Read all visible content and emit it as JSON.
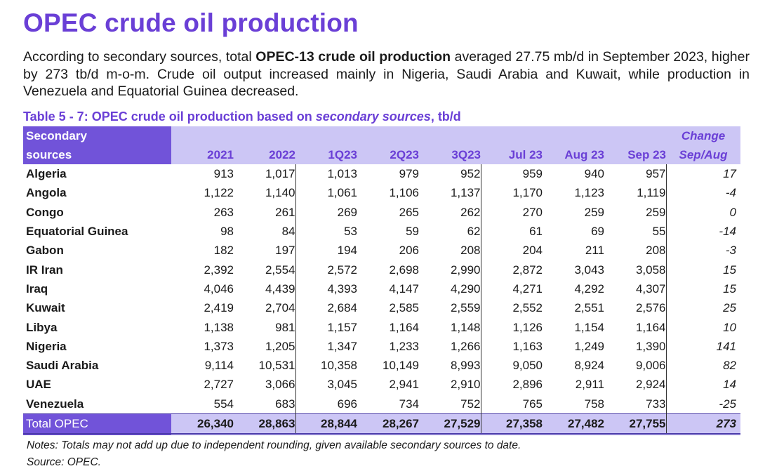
{
  "title": "OPEC crude oil production",
  "intro": {
    "part1": "According to secondary sources, total ",
    "bold": "OPEC-13 crude oil production",
    "part2": " averaged 27.75 mb/d in September 2023, higher by 273 tb/d m-o-m. Crude oil output increased mainly in Nigeria, Saudi Arabia and Kuwait, while production in Venezuela and Equatorial Guinea decreased."
  },
  "caption": {
    "prefix": "Table 5 - 7: OPEC crude oil production based on ",
    "italic": "secondary sources",
    "suffix": ", tb/d"
  },
  "table": {
    "header": {
      "sources_line1": "Secondary",
      "sources_line2": "sources",
      "columns": [
        "2021",
        "2022",
        "1Q23",
        "2Q23",
        "3Q23",
        "Jul 23",
        "Aug 23",
        "Sep 23"
      ],
      "change_line1": "Change",
      "change_line2": "Sep/Aug"
    },
    "rows": [
      {
        "name": "Algeria",
        "values": [
          "913",
          "1,017",
          "1,013",
          "979",
          "952",
          "959",
          "940",
          "957"
        ],
        "change": "17"
      },
      {
        "name": "Angola",
        "values": [
          "1,122",
          "1,140",
          "1,061",
          "1,106",
          "1,137",
          "1,170",
          "1,123",
          "1,119"
        ],
        "change": "-4"
      },
      {
        "name": "Congo",
        "values": [
          "263",
          "261",
          "269",
          "265",
          "262",
          "270",
          "259",
          "259"
        ],
        "change": "0"
      },
      {
        "name": "Equatorial Guinea",
        "values": [
          "98",
          "84",
          "53",
          "59",
          "62",
          "61",
          "69",
          "55"
        ],
        "change": "-14"
      },
      {
        "name": "Gabon",
        "values": [
          "182",
          "197",
          "194",
          "206",
          "208",
          "204",
          "211",
          "208"
        ],
        "change": "-3"
      },
      {
        "name": "IR Iran",
        "values": [
          "2,392",
          "2,554",
          "2,572",
          "2,698",
          "2,990",
          "2,872",
          "3,043",
          "3,058"
        ],
        "change": "15"
      },
      {
        "name": "Iraq",
        "values": [
          "4,046",
          "4,439",
          "4,393",
          "4,147",
          "4,290",
          "4,271",
          "4,292",
          "4,307"
        ],
        "change": "15"
      },
      {
        "name": "Kuwait",
        "values": [
          "2,419",
          "2,704",
          "2,684",
          "2,585",
          "2,559",
          "2,552",
          "2,551",
          "2,576"
        ],
        "change": "25"
      },
      {
        "name": "Libya",
        "values": [
          "1,138",
          "981",
          "1,157",
          "1,164",
          "1,148",
          "1,126",
          "1,154",
          "1,164"
        ],
        "change": "10"
      },
      {
        "name": "Nigeria",
        "values": [
          "1,373",
          "1,205",
          "1,347",
          "1,233",
          "1,266",
          "1,163",
          "1,249",
          "1,390"
        ],
        "change": "141"
      },
      {
        "name": "Saudi Arabia",
        "values": [
          "9,114",
          "10,531",
          "10,358",
          "10,149",
          "8,993",
          "9,050",
          "8,924",
          "9,006"
        ],
        "change": "82"
      },
      {
        "name": "UAE",
        "values": [
          "2,727",
          "3,066",
          "3,045",
          "2,941",
          "2,910",
          "2,896",
          "2,911",
          "2,924"
        ],
        "change": "14"
      },
      {
        "name": "Venezuela",
        "values": [
          "554",
          "683",
          "696",
          "734",
          "752",
          "765",
          "758",
          "733"
        ],
        "change": "-25"
      }
    ],
    "total": {
      "name": "Total  OPEC",
      "values": [
        "26,340",
        "28,863",
        "28,844",
        "28,267",
        "27,529",
        "27,358",
        "27,482",
        "27,755"
      ],
      "change": "273"
    }
  },
  "notes": "Notes: Totals may not add up due to independent rounding, given available secondary sources to date.",
  "source": "Source: OPEC."
}
